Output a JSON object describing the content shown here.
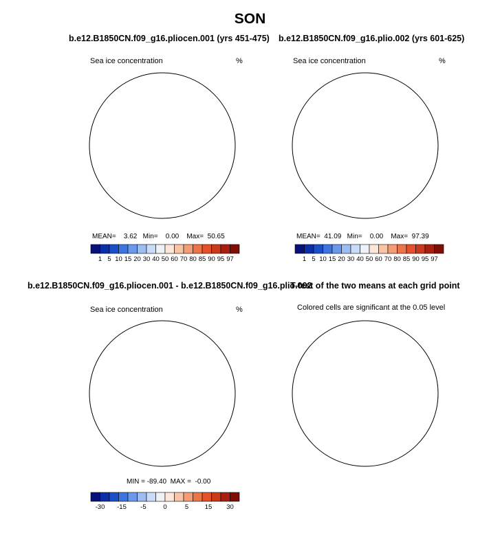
{
  "title": "SON",
  "panels": [
    {
      "title": "b.e12.B1850CN.f09_g16.pliocen.001 (yrs 451-475)",
      "subtitle_left": "Sea ice concentration",
      "subtitle_right": "%",
      "stats": {
        "mean_label": "MEAN=",
        "mean": "3.62",
        "min_label": "Min=",
        "min": "0.00",
        "max_label": "Max=",
        "max": "50.65"
      }
    },
    {
      "title": "b.e12.B1850CN.f09_g16.plio.002 (yrs 601-625)",
      "subtitle_left": "Sea ice concentration",
      "subtitle_right": "%",
      "stats": {
        "mean_label": "MEAN=",
        "mean": "41.09",
        "min_label": "Min=",
        "min": "0.00",
        "max_label": "Max=",
        "max": "97.39"
      }
    },
    {
      "title": "b.e12.B1850CN.f09_g16.pliocen.001 - b.e12.B1850CN.f09_g16.plio.002",
      "subtitle_left": "Sea ice concentration",
      "subtitle_right": "%",
      "stats_text": "MIN = -89.40  MAX =  -0.00"
    },
    {
      "title": "T-test of the two means at each grid point",
      "subtitle": "Colored cells are significant at the 0.05 level"
    }
  ],
  "colorbar_top": {
    "colors": [
      "#08107a",
      "#0b2fa6",
      "#1a4fc8",
      "#3e74df",
      "#6b98ea",
      "#9cbcf2",
      "#c9dbf7",
      "#eef1f6",
      "#fbe6d9",
      "#f8c4a6",
      "#f39c76",
      "#ec7449",
      "#e3502a",
      "#c93a1a",
      "#a61f0f",
      "#7e0e08"
    ],
    "labels": [
      "1",
      "5",
      "10",
      "15",
      "20",
      "30",
      "40",
      "50",
      "60",
      "70",
      "80",
      "85",
      "90",
      "95",
      "97"
    ]
  },
  "colorbar_diff": {
    "colors": [
      "#08107a",
      "#0b2fa6",
      "#1a4fc8",
      "#3e74df",
      "#6b98ea",
      "#9cbcf2",
      "#c9dbf7",
      "#eef1f6",
      "#fbe6d9",
      "#f8c4a6",
      "#f39c76",
      "#ec7449",
      "#e3502a",
      "#c93a1a",
      "#a61f0f",
      "#7e0e08"
    ],
    "labels": [
      "-30",
      "-15",
      "-5",
      "0",
      "5",
      "15",
      "30"
    ]
  },
  "colors": {
    "ice_dark": "#0b2fa6",
    "ice_mid": "#3e74df",
    "ice_light": "#9cbcf2",
    "diff_dark": "#08107a",
    "ttest": "#f47a4a",
    "warm_core": "#c93a1a",
    "warm_mid": "#ec7449",
    "warm_light": "#f8c4a6"
  }
}
